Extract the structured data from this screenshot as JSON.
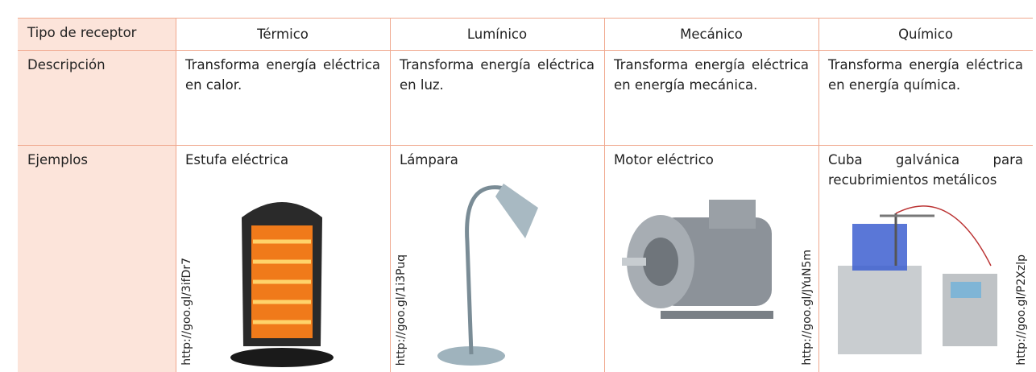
{
  "table": {
    "header": [
      "Tipo de receptor",
      "Térmico",
      "Lumínico",
      "Mecánico",
      "Químico"
    ],
    "rows": [
      [
        "Descripción",
        "Transforma energía eléctrica en calor.",
        "Transforma energía eléctrica en luz.",
        "Transforma energía eléctrica en energía mecánica.",
        "Transforma energía eléctrica en energía química."
      ],
      [
        "Ejemplos",
        "Estufa eléctrica",
        "Lámpara",
        "Motor eléctrico",
        "Cuba galvánica para recubrimientos metálicos"
      ]
    ],
    "credits": [
      "http://goo.gl/3ifDr7",
      "http://goo.gl/1i3Puq",
      "http://goo.gl/JYuN5m",
      "http://goo.gl/P2Xzlp"
    ]
  }
}
